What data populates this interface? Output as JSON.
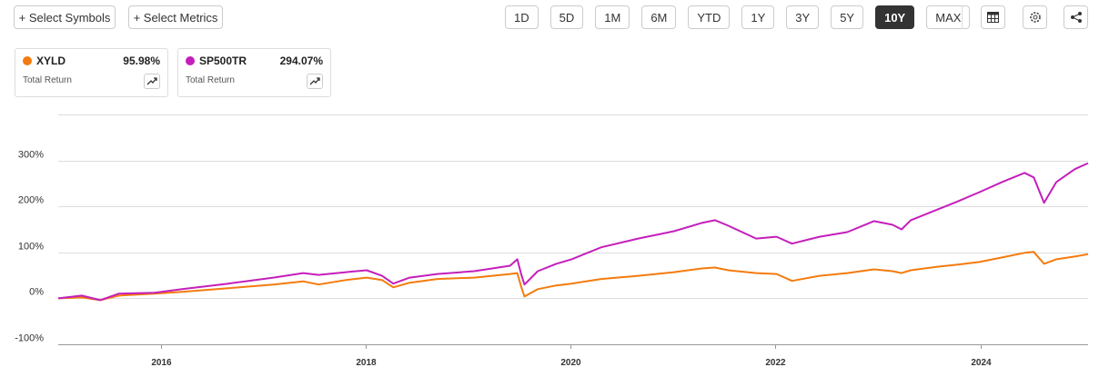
{
  "toolbar": {
    "buttons": [
      "+ Select Symbols",
      "+ Select Metrics"
    ],
    "ranges": [
      "1D",
      "5D",
      "1M",
      "6M",
      "YTD",
      "1Y",
      "3Y",
      "5Y",
      "10Y",
      "MAX"
    ],
    "active": "10Y"
  },
  "chart_data": {
    "type": "line",
    "series": [
      {
        "name": "XYLD",
        "color": "#f47b0e",
        "metric": "Total Return",
        "summary": {
          "value": 95.98,
          "label": "95.98%"
        },
        "x": [
          2015.0,
          2015.23,
          2015.41,
          2015.59,
          2015.94,
          2016.21,
          2016.66,
          2017.1,
          2017.39,
          2017.54,
          2017.81,
          2018.01,
          2018.16,
          2018.27,
          2018.43,
          2018.7,
          2019.06,
          2019.41,
          2019.48,
          2019.52,
          2019.55,
          2019.68,
          2019.86,
          2020.01,
          2020.3,
          2020.66,
          2021.01,
          2021.28,
          2021.41,
          2021.54,
          2021.81,
          2022.01,
          2022.16,
          2022.43,
          2022.7,
          2022.96,
          2023.14,
          2023.23,
          2023.32,
          2023.59,
          2023.76,
          2023.99,
          2024.21,
          2024.43,
          2024.52,
          2024.62,
          2024.74,
          2024.92,
          2025.05
        ],
        "values": [
          0,
          2,
          -4,
          6,
          10,
          14,
          22,
          30,
          37,
          30,
          40,
          45,
          40,
          24,
          34,
          42,
          45,
          53,
          55,
          24,
          4,
          20,
          28,
          32,
          42,
          49,
          57,
          65,
          67,
          61,
          55,
          53,
          38,
          49,
          55,
          63,
          59,
          55,
          61,
          69,
          73,
          79,
          89,
          99,
          101,
          75,
          85,
          91,
          95.98
        ]
      },
      {
        "name": "SP500TR",
        "color": "#c41fbb",
        "metric": "Total Return",
        "summary": {
          "value": 294.07,
          "label": "294.07%"
        },
        "x": [
          2015.0,
          2015.23,
          2015.41,
          2015.59,
          2015.94,
          2016.21,
          2016.66,
          2017.1,
          2017.39,
          2017.54,
          2017.81,
          2018.01,
          2018.16,
          2018.27,
          2018.43,
          2018.7,
          2019.06,
          2019.41,
          2019.48,
          2019.52,
          2019.55,
          2019.68,
          2019.86,
          2020.01,
          2020.3,
          2020.66,
          2021.01,
          2021.28,
          2021.41,
          2021.54,
          2021.81,
          2022.01,
          2022.16,
          2022.43,
          2022.7,
          2022.96,
          2023.14,
          2023.23,
          2023.32,
          2023.59,
          2023.76,
          2023.99,
          2024.21,
          2024.43,
          2024.52,
          2024.62,
          2024.74,
          2024.92,
          2025.05
        ],
        "values": [
          0,
          6,
          -4,
          10,
          12,
          20,
          32,
          45,
          55,
          51,
          57,
          61,
          49,
          32,
          45,
          53,
          59,
          71,
          85,
          51,
          30,
          59,
          75,
          85,
          111,
          130,
          146,
          164,
          170,
          158,
          130,
          134,
          119,
          134,
          144,
          168,
          160,
          150,
          170,
          194,
          209,
          231,
          253,
          273,
          263,
          208,
          253,
          281,
          294.07
        ]
      }
    ],
    "xlim": [
      2015.0,
      2025.05
    ],
    "xticks": [
      2016,
      2018,
      2020,
      2022,
      2024
    ],
    "ylim": [
      -100,
      400
    ],
    "yticks": [
      {
        "value": -100,
        "label": "-100%"
      },
      {
        "value": 0,
        "label": "0%"
      },
      {
        "value": 100,
        "label": "100%"
      },
      {
        "value": 200,
        "label": "200%"
      },
      {
        "value": 300,
        "label": "300%"
      }
    ],
    "grid": true
  }
}
